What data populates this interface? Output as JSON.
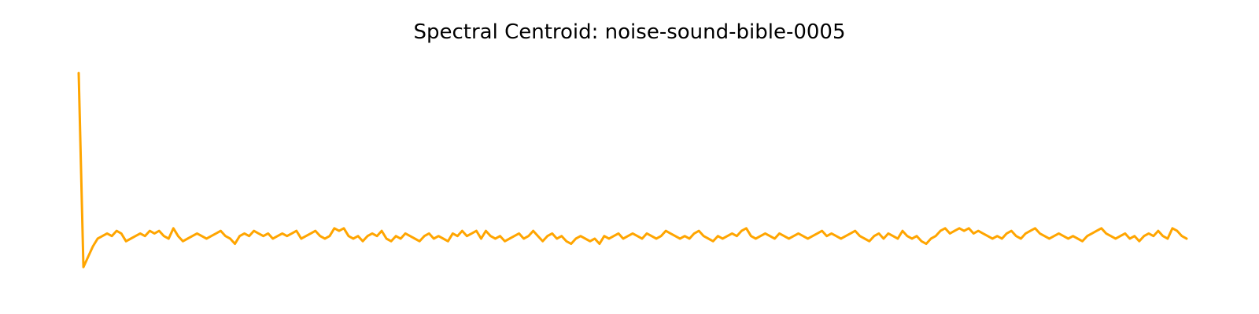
{
  "chart_data": {
    "type": "line",
    "title": "Spectral Centroid: noise-sound-bible-0005",
    "xlabel": "",
    "ylabel": "",
    "axes_visible": false,
    "grid": false,
    "legend": "none",
    "series": [
      {
        "color": "#FFA500",
        "values": [
          0.81,
          0.06,
          0.1,
          0.14,
          0.17,
          0.18,
          0.19,
          0.18,
          0.2,
          0.19,
          0.16,
          0.17,
          0.18,
          0.19,
          0.18,
          0.2,
          0.19,
          0.2,
          0.18,
          0.17,
          0.21,
          0.18,
          0.16,
          0.17,
          0.18,
          0.19,
          0.18,
          0.17,
          0.18,
          0.19,
          0.2,
          0.18,
          0.17,
          0.15,
          0.18,
          0.19,
          0.18,
          0.2,
          0.19,
          0.18,
          0.19,
          0.17,
          0.18,
          0.19,
          0.18,
          0.19,
          0.2,
          0.17,
          0.18,
          0.19,
          0.2,
          0.18,
          0.17,
          0.18,
          0.21,
          0.2,
          0.21,
          0.18,
          0.17,
          0.18,
          0.16,
          0.18,
          0.19,
          0.18,
          0.2,
          0.17,
          0.16,
          0.18,
          0.17,
          0.19,
          0.18,
          0.17,
          0.16,
          0.18,
          0.19,
          0.17,
          0.18,
          0.17,
          0.16,
          0.19,
          0.18,
          0.2,
          0.18,
          0.19,
          0.2,
          0.17,
          0.2,
          0.18,
          0.17,
          0.18,
          0.16,
          0.17,
          0.18,
          0.19,
          0.17,
          0.18,
          0.2,
          0.18,
          0.16,
          0.18,
          0.19,
          0.17,
          0.18,
          0.16,
          0.15,
          0.17,
          0.18,
          0.17,
          0.16,
          0.17,
          0.15,
          0.18,
          0.17,
          0.18,
          0.19,
          0.17,
          0.18,
          0.19,
          0.18,
          0.17,
          0.19,
          0.18,
          0.17,
          0.18,
          0.2,
          0.19,
          0.18,
          0.17,
          0.18,
          0.17,
          0.19,
          0.2,
          0.18,
          0.17,
          0.16,
          0.18,
          0.17,
          0.18,
          0.19,
          0.18,
          0.2,
          0.21,
          0.18,
          0.17,
          0.18,
          0.19,
          0.18,
          0.17,
          0.19,
          0.18,
          0.17,
          0.18,
          0.19,
          0.18,
          0.17,
          0.18,
          0.19,
          0.2,
          0.18,
          0.19,
          0.18,
          0.17,
          0.18,
          0.19,
          0.2,
          0.18,
          0.17,
          0.16,
          0.18,
          0.19,
          0.17,
          0.19,
          0.18,
          0.17,
          0.2,
          0.18,
          0.17,
          0.18,
          0.16,
          0.15,
          0.17,
          0.18,
          0.2,
          0.21,
          0.19,
          0.2,
          0.21,
          0.2,
          0.21,
          0.19,
          0.2,
          0.19,
          0.18,
          0.17,
          0.18,
          0.17,
          0.19,
          0.2,
          0.18,
          0.17,
          0.19,
          0.2,
          0.21,
          0.19,
          0.18,
          0.17,
          0.18,
          0.19,
          0.18,
          0.17,
          0.18,
          0.17,
          0.16,
          0.18,
          0.19,
          0.2,
          0.21,
          0.19,
          0.18,
          0.17,
          0.18,
          0.19,
          0.17,
          0.18,
          0.16,
          0.18,
          0.19,
          0.18,
          0.2,
          0.18,
          0.17,
          0.21,
          0.2,
          0.18,
          0.17
        ]
      }
    ],
    "ylim": [
      0.0,
      0.85
    ]
  }
}
